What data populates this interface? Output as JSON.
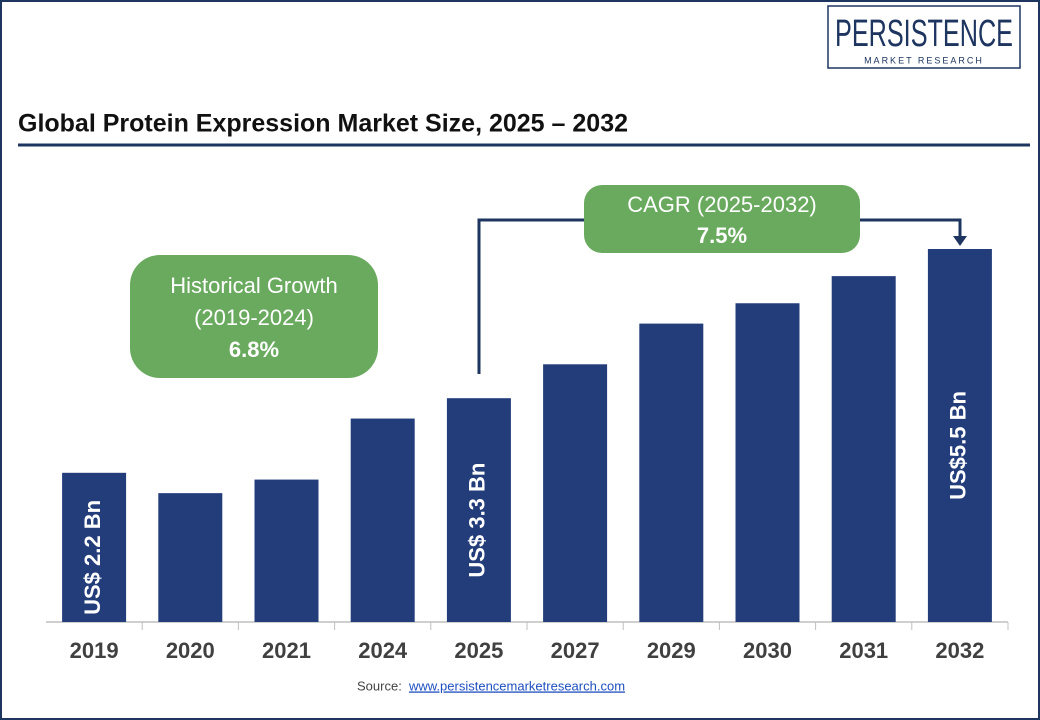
{
  "chart_data": {
    "type": "bar",
    "title": "Global Protein Expression Market Size, 2025 – 2032",
    "logo": {
      "name": "PERSISTENCE",
      "tagline": "MARKET RESEARCH"
    },
    "annotations": {
      "historical": {
        "label": "Historical Growth",
        "period": "(2019-2024)",
        "value": "6.8%"
      },
      "forecast": {
        "label": "CAGR (2025-2032)",
        "value": "7.5%"
      }
    },
    "source": {
      "label": "Source:",
      "link": "www.persistencemarketresearch.com"
    },
    "categories": [
      "2019",
      "2020",
      "2021",
      "2024",
      "2025",
      "2027",
      "2029",
      "2030",
      "2031",
      "2032"
    ],
    "values": [
      2.2,
      1.9,
      2.1,
      3.0,
      3.3,
      3.8,
      4.4,
      4.7,
      5.1,
      5.5
    ],
    "value_labels": [
      "US$ 2.2 Bn",
      null,
      null,
      null,
      "US$ 3.3 Bn",
      null,
      null,
      null,
      null,
      "US$5.5 Bn"
    ],
    "color": "#233d7b"
  }
}
